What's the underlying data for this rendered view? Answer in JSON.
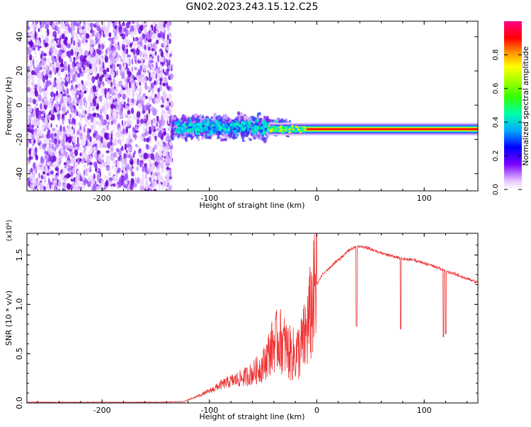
{
  "title": "GN02.2023.243.15.12.C25",
  "chart_data": [
    {
      "type": "heatmap",
      "xlabel": "Height of straight line (km)",
      "ylabel": "Frequency (Hz)",
      "xlim": [
        -270,
        150
      ],
      "ylim": [
        -50,
        49
      ],
      "x_ticks": [
        -200,
        -100,
        0,
        100
      ],
      "y_ticks": [
        -40,
        -20,
        0,
        20,
        40
      ],
      "colorbar": {
        "label": "Normalized spectral amplitude",
        "ticks": [
          "0.0",
          "0.2",
          "0.4",
          "0.6",
          "0.8"
        ],
        "range": [
          0,
          1
        ],
        "colormap": "hsv-rainbow (white → purple → blue → cyan → green → yellow → red → magenta)"
      },
      "description": {
        "noise_region_x": [
          -270,
          -135
        ],
        "signal_start_x": -135,
        "tone_frequency_hz": -14,
        "tone_frequency_hz_near_signal_start": -13
      }
    },
    {
      "type": "line",
      "xlabel": "Height of straight line (km)",
      "ylabel": "SNR (10 * v/v)",
      "y_multiplier": "(x10⁴)",
      "xlim": [
        -270,
        150
      ],
      "ylim": [
        0,
        1.72
      ],
      "x_ticks": [
        -200,
        -100,
        0,
        100
      ],
      "y_ticks": [
        "0.0",
        "0.5",
        "1.0",
        "1.5"
      ],
      "color": "#ee3333",
      "series": [
        {
          "x": [
            -270,
            -200,
            -150,
            -125,
            -115,
            -100,
            -90,
            -80,
            -70,
            -60,
            -50,
            -45,
            -40,
            -35,
            -30,
            -25,
            -20,
            -15,
            -10,
            -5,
            0,
            5,
            10,
            15,
            20,
            25,
            30,
            35,
            40,
            45,
            50,
            60,
            70,
            80,
            90,
            100,
            110,
            120,
            130,
            140,
            150
          ],
          "values": [
            0.005,
            0.005,
            0.005,
            0.01,
            0.05,
            0.12,
            0.18,
            0.22,
            0.25,
            0.3,
            0.38,
            0.5,
            0.6,
            0.65,
            0.58,
            0.5,
            0.48,
            0.55,
            0.7,
            0.95,
            1.2,
            1.3,
            1.35,
            1.4,
            1.45,
            1.5,
            1.55,
            1.58,
            1.59,
            1.58,
            1.56,
            1.52,
            1.49,
            1.46,
            1.45,
            1.42,
            1.38,
            1.34,
            1.3,
            1.26,
            1.22
          ]
        }
      ],
      "dips": [
        {
          "x": 37,
          "y": 0.78
        },
        {
          "x": 78,
          "y": 0.75
        },
        {
          "x": 118,
          "y": 0.67
        },
        {
          "x": 120,
          "y": 0.7
        }
      ]
    }
  ]
}
